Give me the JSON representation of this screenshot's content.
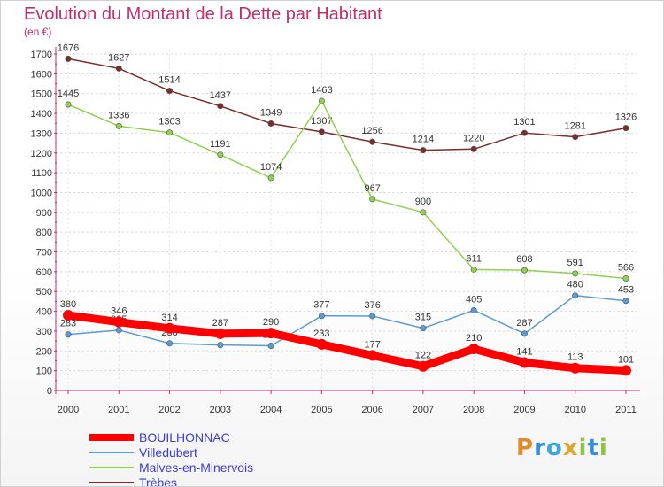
{
  "chart_data": {
    "type": "line",
    "title": "Evolution du Montant de la Dette par Habitant",
    "unit": "(en €)",
    "categories": [
      "2000",
      "2001",
      "2002",
      "2003",
      "2004",
      "2005",
      "2006",
      "2007",
      "2008",
      "2009",
      "2010",
      "2011"
    ],
    "ylim": [
      0,
      1700
    ],
    "yticks": [
      0,
      100,
      200,
      300,
      400,
      500,
      600,
      700,
      800,
      900,
      1000,
      1100,
      1200,
      1300,
      1400,
      1500,
      1600,
      1700
    ],
    "grid": true,
    "legend_position": "bottom-left",
    "series": [
      {
        "name": "BOUILHONNAC",
        "color": "#ff0000",
        "values": [
          380,
          346,
          314,
          287,
          290,
          233,
          177,
          122,
          210,
          141,
          113,
          101
        ]
      },
      {
        "name": "Villedubert",
        "color": "#5b9bd5",
        "values": [
          283,
          305,
          238,
          230,
          226,
          377,
          376,
          315,
          405,
          287,
          480,
          453
        ]
      },
      {
        "name": "Malves-en-Minervois",
        "color": "#8fd14f",
        "values": [
          1445,
          1336,
          1303,
          1191,
          1074,
          1463,
          967,
          900,
          611,
          608,
          591,
          566
        ]
      },
      {
        "name": "Trèbes",
        "color": "#7a2d2d",
        "values": [
          1676,
          1627,
          1514,
          1437,
          1349,
          1307,
          1256,
          1214,
          1220,
          1301,
          1281,
          1326
        ]
      }
    ]
  },
  "logo": {
    "letters": [
      "P",
      "r",
      "o",
      "x",
      "i",
      "t",
      "i"
    ]
  }
}
